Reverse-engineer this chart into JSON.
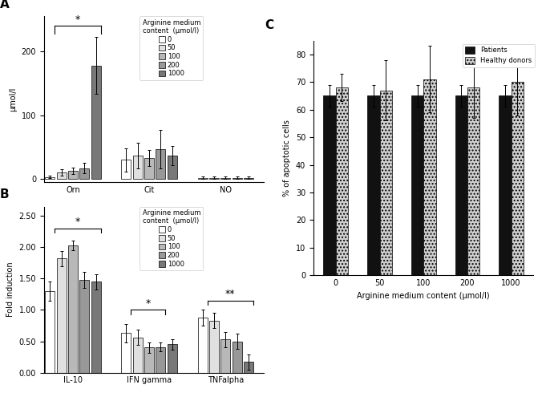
{
  "panel_A": {
    "ylabel": "μmol/l",
    "groups": [
      "Orn",
      "Cit",
      "NO"
    ],
    "bar_values": {
      "Orn": [
        3,
        10,
        13,
        17,
        178
      ],
      "Cit": [
        30,
        37,
        33,
        47,
        37
      ],
      "NO": [
        2,
        2,
        2,
        2,
        2
      ]
    },
    "bar_errors": {
      "Orn": [
        2,
        5,
        5,
        8,
        45
      ],
      "Cit": [
        18,
        20,
        13,
        30,
        15
      ],
      "NO": [
        1.5,
        1.5,
        1.5,
        1.5,
        1.5
      ]
    },
    "ylim": [
      -5,
      255
    ],
    "yticks": [
      0,
      100,
      200
    ],
    "legend_title": "Arginine medium\ncontent  (μmol/l)",
    "legend_labels": [
      "0",
      "50",
      "100",
      "200",
      "1000"
    ],
    "bar_colors": [
      "#ffffff",
      "#e0e0e0",
      "#b8b8b8",
      "#989898",
      "#787878"
    ]
  },
  "panel_B": {
    "ylabel": "Fold induction",
    "groups": [
      "IL-10",
      "IFN gamma",
      "TNFalpha"
    ],
    "bar_values": {
      "IL-10": [
        1.3,
        1.82,
        2.03,
        1.48,
        1.45
      ],
      "IFN gamma": [
        0.63,
        0.56,
        0.4,
        0.41,
        0.45
      ],
      "TNFalpha": [
        0.88,
        0.83,
        0.53,
        0.5,
        0.17
      ]
    },
    "bar_errors": {
      "IL-10": [
        0.15,
        0.12,
        0.08,
        0.13,
        0.12
      ],
      "IFN gamma": [
        0.15,
        0.12,
        0.08,
        0.07,
        0.08
      ],
      "TNFalpha": [
        0.13,
        0.12,
        0.12,
        0.12,
        0.12
      ]
    },
    "ylim": [
      0,
      2.65
    ],
    "yticks": [
      0.0,
      0.5,
      1.0,
      1.5,
      2.0,
      2.5
    ],
    "legend_title": "Arginine medium\ncontent  (μmol/l)",
    "legend_labels": [
      "0",
      "50",
      "100",
      "200",
      "1000"
    ],
    "bar_colors": [
      "#ffffff",
      "#e0e0e0",
      "#b8b8b8",
      "#989898",
      "#787878"
    ]
  },
  "panel_C": {
    "ylabel": "% of apoptotic cells",
    "xlabel": "Arginine medium content (μmol/l)",
    "x_labels": [
      "0",
      "50",
      "100",
      "200",
      "1000"
    ],
    "patients": [
      65,
      65,
      65,
      65,
      65
    ],
    "patients_err": [
      4,
      4,
      4,
      4,
      4
    ],
    "donors": [
      68,
      67,
      71,
      68,
      70
    ],
    "donors_err": [
      5,
      11,
      12,
      11,
      12
    ],
    "ylim": [
      0,
      85
    ],
    "yticks": [
      0,
      10,
      20,
      30,
      40,
      50,
      60,
      70,
      80
    ],
    "patients_color": "#111111",
    "donors_color": "#d0d0d0",
    "donors_hatch": "....",
    "legend_labels": [
      "Patients",
      "Healthy donors"
    ]
  }
}
